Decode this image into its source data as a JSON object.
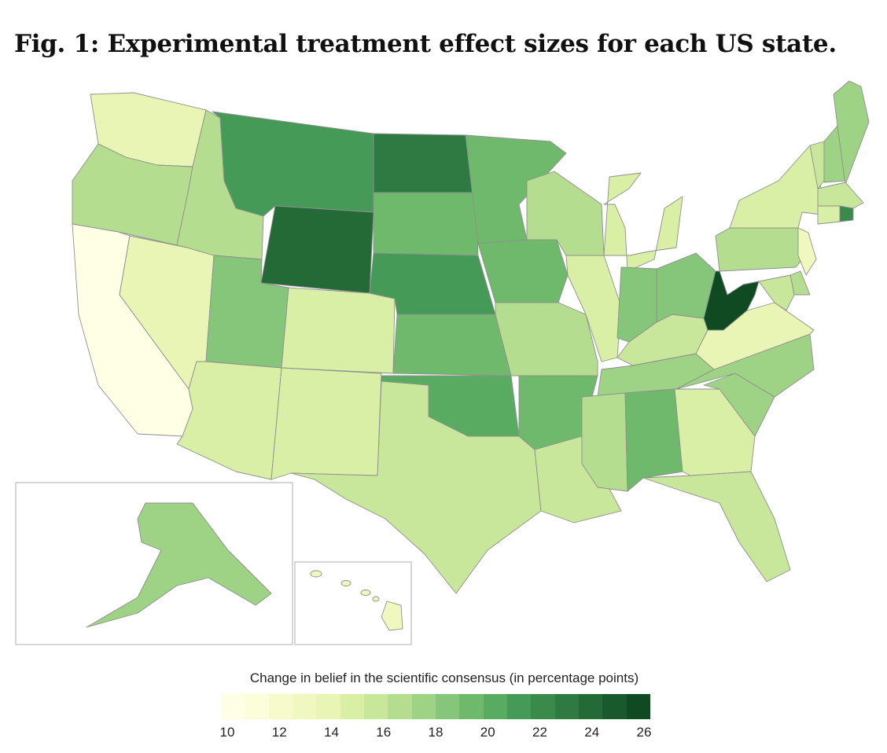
{
  "figure": {
    "title": "Fig. 1: Experimental treatment effect sizes for each US state."
  },
  "legend": {
    "title": "Change in belief in the scientific consensus (in percentage points)",
    "min": 10,
    "max": 26,
    "ticks": [
      "10",
      "12",
      "14",
      "16",
      "18",
      "20",
      "22",
      "24",
      "26"
    ],
    "colors": [
      "#ffffe5",
      "#fcfdd9",
      "#f7fbcc",
      "#f0f8c0",
      "#e9f5b4",
      "#d9efa6",
      "#c8e79b",
      "#b4dd8f",
      "#9ed285",
      "#86c67a",
      "#6fb96c",
      "#5aab62",
      "#469a57",
      "#3a8a4c",
      "#2f7a42",
      "#246a37",
      "#1a592d",
      "#0f4a23"
    ]
  },
  "chart_data": {
    "type": "map",
    "region": "United States",
    "value_label": "Change in belief in the scientific consensus (in percentage points)",
    "scale": [
      10,
      26
    ],
    "states": [
      {
        "state": "WA",
        "value": 13.8
      },
      {
        "state": "OR",
        "value": 16.5
      },
      {
        "state": "CA",
        "value": 10.8
      },
      {
        "state": "NV",
        "value": 14.2
      },
      {
        "state": "ID",
        "value": 16.3
      },
      {
        "state": "MT",
        "value": 20.8
      },
      {
        "state": "WY",
        "value": 23.5
      },
      {
        "state": "UT",
        "value": 18.6
      },
      {
        "state": "AZ",
        "value": 15.2
      },
      {
        "state": "CO",
        "value": 15.0
      },
      {
        "state": "NM",
        "value": 14.8
      },
      {
        "state": "ND",
        "value": 23.2
      },
      {
        "state": "SD",
        "value": 18.9
      },
      {
        "state": "NE",
        "value": 20.7
      },
      {
        "state": "KS",
        "value": 19.6
      },
      {
        "state": "OK",
        "value": 20.1
      },
      {
        "state": "TX",
        "value": 15.8
      },
      {
        "state": "MN",
        "value": 19.2
      },
      {
        "state": "IA",
        "value": 19.4
      },
      {
        "state": "MO",
        "value": 16.9
      },
      {
        "state": "AR",
        "value": 19.1
      },
      {
        "state": "LA",
        "value": 15.9
      },
      {
        "state": "WI",
        "value": 16.4
      },
      {
        "state": "IL",
        "value": 14.9
      },
      {
        "state": "MI",
        "value": 14.7
      },
      {
        "state": "IN",
        "value": 18.7
      },
      {
        "state": "OH",
        "value": 18.1
      },
      {
        "state": "KY",
        "value": 15.5
      },
      {
        "state": "TN",
        "value": 17.9
      },
      {
        "state": "MS",
        "value": 16.7
      },
      {
        "state": "AL",
        "value": 19.5
      },
      {
        "state": "GA",
        "value": 15.1
      },
      {
        "state": "FL",
        "value": 15.6
      },
      {
        "state": "SC",
        "value": 17.6
      },
      {
        "state": "NC",
        "value": 17.2
      },
      {
        "state": "VA",
        "value": 13.6
      },
      {
        "state": "WV",
        "value": 25.2
      },
      {
        "state": "PA",
        "value": 16.8
      },
      {
        "state": "NY",
        "value": 14.9
      },
      {
        "state": "VT",
        "value": 15.8
      },
      {
        "state": "NH",
        "value": 17.9
      },
      {
        "state": "ME",
        "value": 17.5
      },
      {
        "state": "MA",
        "value": 15.6
      },
      {
        "state": "CT",
        "value": 15.3
      },
      {
        "state": "RI",
        "value": 22.0
      },
      {
        "state": "NJ",
        "value": 13.2
      },
      {
        "state": "DE",
        "value": 17.0
      },
      {
        "state": "MD",
        "value": 16.2
      },
      {
        "state": "AK",
        "value": 17.6
      },
      {
        "state": "HI",
        "value": 13.4
      }
    ]
  }
}
